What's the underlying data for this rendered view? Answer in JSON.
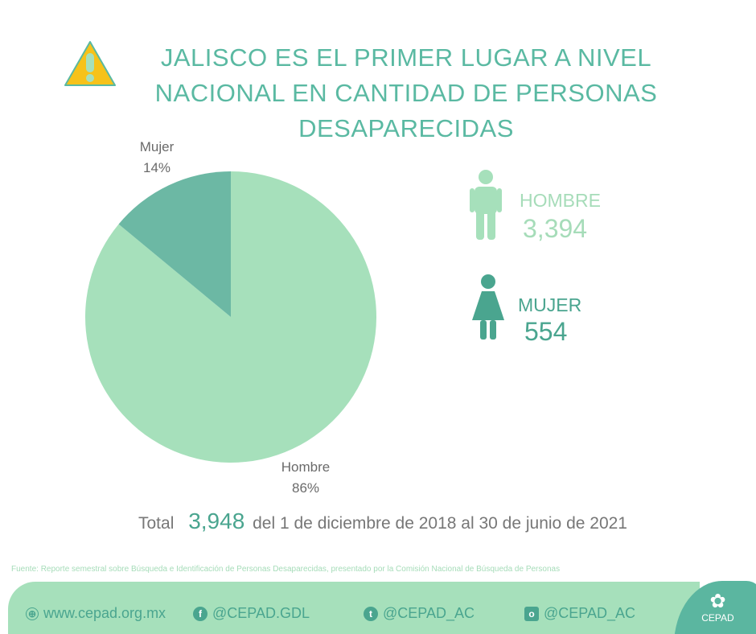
{
  "title": "JALISCO ES EL PRIMER LUGAR A NIVEL NACIONAL EN CANTIDAD DE PERSONAS DESAPARECIDAS",
  "chart_data": {
    "type": "pie",
    "categories": [
      "Hombre",
      "Mujer"
    ],
    "values": [
      86,
      14
    ],
    "value_labels": [
      "86%",
      "14%"
    ],
    "colors": [
      "#a6e0bb",
      "#6cb8a4"
    ]
  },
  "stats": {
    "hombre": {
      "label": "HOMBRE",
      "value": "3,394",
      "color": "#a6dcb9"
    },
    "mujer": {
      "label": "MUJER",
      "value": "554",
      "color": "#4aa58f"
    }
  },
  "total": {
    "label": "Total",
    "value": "3,948",
    "range": "del 1 de diciembre de 2018 al 30 de junio de 2021"
  },
  "source": "Fuente: Reporte semestral sobre Búsqueda e Identificación de Personas Desaparecidas, presentado por la Comisión Nacional de Búsqueda de Personas",
  "footer": {
    "website": "www.cepad.org.mx",
    "facebook": "@CEPAD.GDL",
    "twitter": "@CEPAD_AC",
    "instagram": "@CEPAD_AC",
    "logo_text": "CEPAD"
  }
}
